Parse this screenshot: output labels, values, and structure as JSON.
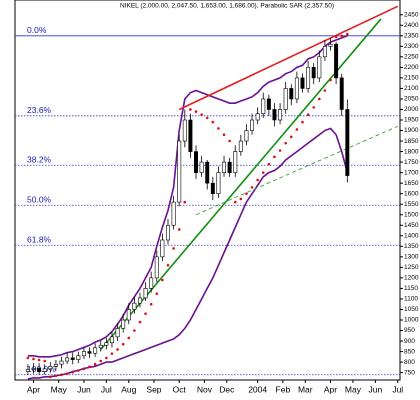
{
  "chart_data": {
    "type": "candlestick",
    "title": "NIKEL (2,000.00, 2,047.50, 1,653.00, 1,686.00), Parabolic SAR (2,357.50)",
    "open": [
      755,
      765,
      770,
      755,
      768,
      780,
      790,
      805,
      820,
      812,
      830,
      850,
      842,
      868,
      880,
      892,
      920,
      960,
      1000,
      1050,
      1080,
      1105,
      1150,
      1200,
      1300,
      1380,
      1450,
      1560,
      1850,
      1950,
      1800,
      1700,
      1750,
      1650,
      1600,
      1700,
      1750,
      1700,
      1800,
      1850,
      1900,
      1950,
      1980,
      2050,
      2000,
      1950,
      2000,
      2100,
      2050,
      2150,
      2100,
      2200,
      2150,
      2250,
      2300,
      2310,
      2150,
      2000
    ],
    "high": [
      790,
      795,
      795,
      790,
      800,
      810,
      825,
      845,
      845,
      850,
      870,
      870,
      890,
      900,
      915,
      945,
      985,
      1030,
      1080,
      1110,
      1130,
      1180,
      1230,
      1330,
      1410,
      1480,
      1590,
      1880,
      2000,
      1980,
      1830,
      1780,
      1760,
      1680,
      1730,
      1780,
      1770,
      1830,
      1880,
      1930,
      1980,
      2010,
      2080,
      2070,
      2030,
      2030,
      2130,
      2120,
      2180,
      2170,
      2230,
      2220,
      2280,
      2330,
      2340,
      2320,
      2170,
      2047.5
    ],
    "low": [
      740,
      745,
      740,
      740,
      750,
      760,
      770,
      790,
      790,
      795,
      815,
      820,
      825,
      850,
      860,
      870,
      900,
      940,
      980,
      1030,
      1060,
      1090,
      1130,
      1180,
      1280,
      1360,
      1430,
      1540,
      1820,
      1770,
      1670,
      1680,
      1620,
      1570,
      1580,
      1680,
      1680,
      1680,
      1780,
      1830,
      1880,
      1930,
      1960,
      1970,
      1920,
      1930,
      1980,
      2020,
      2030,
      2080,
      2080,
      2120,
      2130,
      2230,
      2280,
      2120,
      1970,
      1653
    ],
    "close": [
      765,
      770,
      755,
      768,
      780,
      790,
      805,
      820,
      812,
      830,
      850,
      842,
      868,
      880,
      892,
      920,
      960,
      1000,
      1050,
      1080,
      1105,
      1150,
      1200,
      1300,
      1380,
      1450,
      1560,
      1850,
      1950,
      1800,
      1700,
      1750,
      1650,
      1600,
      1700,
      1750,
      1700,
      1800,
      1850,
      1900,
      1950,
      1980,
      2050,
      2000,
      1950,
      2000,
      2100,
      2050,
      2150,
      2100,
      2200,
      2150,
      2250,
      2300,
      2310,
      2150,
      2000,
      1686
    ],
    "sar": [
      820,
      815,
      810,
      805,
      730,
      735,
      740,
      745,
      752,
      760,
      768,
      778,
      790,
      805,
      820,
      840,
      860,
      885,
      915,
      950,
      990,
      1030,
      1075,
      1125,
      1190,
      1260,
      1340,
      1430,
      1560,
      2000,
      1990,
      1975,
      1960,
      1940,
      1910,
      1880,
      1850,
      1560,
      1575,
      1600,
      1630,
      1665,
      1700,
      1740,
      1775,
      1805,
      1840,
      1870,
      1905,
      1940,
      1975,
      2010,
      2050,
      2090,
      2140,
      2345,
      2350,
      2357.5
    ],
    "sar_color": "#e01010",
    "bands": [
      {
        "color": "#6a1090",
        "values": [
          830,
          830,
          825,
          825,
          825,
          830,
          835,
          845,
          850,
          860,
          870,
          880,
          895,
          905,
          920,
          945,
          980,
          1020,
          1070,
          1110,
          1150,
          1200,
          1250,
          1350,
          1440,
          1520,
          1630,
          1900,
          2050,
          2080,
          2090,
          2080,
          2070,
          2060,
          2050,
          2040,
          2030,
          2030,
          2040,
          2050,
          2060,
          2080,
          2110,
          2130,
          2140,
          2150,
          2170,
          2180,
          2200,
          2210,
          2240,
          2250,
          2270,
          2300,
          2320,
          2330,
          2340,
          2350
        ]
      },
      {
        "color": "#6a1090",
        "values": [
          720,
          725,
          725,
          730,
          730,
          735,
          740,
          745,
          755,
          760,
          770,
          775,
          780,
          790,
          800,
          800,
          810,
          820,
          830,
          840,
          850,
          860,
          870,
          880,
          890,
          900,
          910,
          930,
          960,
          1000,
          1050,
          1100,
          1150,
          1200,
          1260,
          1320,
          1380,
          1440,
          1500,
          1560,
          1600,
          1640,
          1680,
          1700,
          1710,
          1730,
          1760,
          1780,
          1800,
          1820,
          1840,
          1860,
          1880,
          1900,
          1910,
          1880,
          1800,
          1700
        ]
      }
    ],
    "trendlines": [
      {
        "color": "#e02020",
        "dashed": false,
        "x": [
          27,
          66
        ],
        "y": [
          2000,
          2490
        ]
      },
      {
        "color": "#109010",
        "dashed": false,
        "x": [
          13,
          63
        ],
        "y": [
          860,
          2430
        ]
      },
      {
        "color": "#40a040",
        "dashed": true,
        "x": [
          30,
          66
        ],
        "y": [
          1500,
          1920
        ]
      }
    ],
    "levels": [
      {
        "label": "0.0%",
        "value": 2350
      },
      {
        "label": "23.6%",
        "value": 1970
      },
      {
        "label": "38.2%",
        "value": 1735
      },
      {
        "label": "50.0%",
        "value": 1545
      },
      {
        "label": "61.8%",
        "value": 1355
      },
      {
        "label": "100.0%",
        "value": 740
      }
    ],
    "level_color": "#3030d0",
    "xlim": [
      -2.3,
      66.4
    ],
    "xticks": [
      {
        "value": 1,
        "label": "Apr"
      },
      {
        "value": 5.5,
        "label": "May"
      },
      {
        "value": 10,
        "label": "Jun"
      },
      {
        "value": 14,
        "label": "Jul"
      },
      {
        "value": 18,
        "label": "Aug"
      },
      {
        "value": 22.5,
        "label": "Sep"
      },
      {
        "value": 27,
        "label": "Oct"
      },
      {
        "value": 31.5,
        "label": "Nov"
      },
      {
        "value": 35.5,
        "label": "Dec"
      },
      {
        "value": 41,
        "label": "2004"
      },
      {
        "value": 45.5,
        "label": "Feb"
      },
      {
        "value": 49.5,
        "label": "Mar"
      },
      {
        "value": 54,
        "label": "Apr"
      },
      {
        "value": 58,
        "label": "May"
      },
      {
        "value": 62,
        "label": "Jun"
      },
      {
        "value": 66,
        "label": "Jul"
      }
    ],
    "ylim": [
      715,
      2520
    ],
    "yticks": [
      750,
      800,
      850,
      900,
      950,
      1000,
      1050,
      1100,
      1150,
      1200,
      1250,
      1300,
      1350,
      1400,
      1450,
      1500,
      1550,
      1600,
      1650,
      1700,
      1750,
      1800,
      1850,
      1900,
      1950,
      2000,
      2050,
      2100,
      2150,
      2200,
      2250,
      2300,
      2350,
      2400,
      2450
    ]
  }
}
